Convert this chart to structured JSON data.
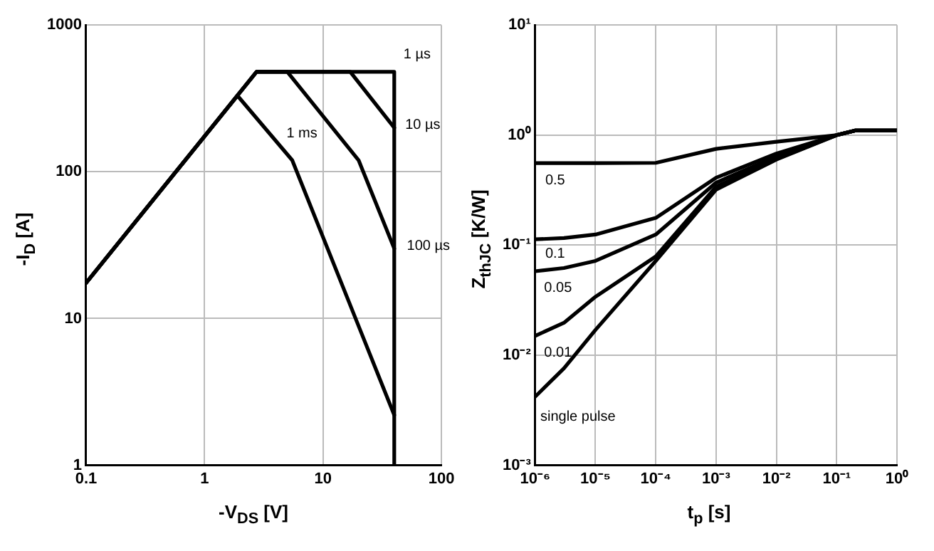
{
  "chart_data": [
    {
      "type": "line",
      "xlabel": "-V$_{DS}$ [V]",
      "ylabel": "-I$_{D}$ [A]",
      "log": "xy",
      "grid": true,
      "legend": false,
      "marker": "none",
      "line_style": "solid",
      "xlim": [
        0.1,
        100
      ],
      "ylim": [
        1,
        1000
      ],
      "xticks": [
        {
          "value": 0.1,
          "label": "0.1"
        },
        1,
        10,
        100
      ],
      "yticks": [
        1,
        10,
        100,
        1000
      ],
      "series": [
        {
          "name": "1 µs",
          "color": "#000000",
          "x": [
            0.1,
            2.75,
            40,
            40
          ],
          "values": [
            17.5,
            480,
            480,
            1
          ]
        },
        {
          "name": "10 µs",
          "color": "#000000",
          "x": [
            0.1,
            2.75,
            17,
            40
          ],
          "values": [
            17.5,
            480,
            480,
            200
          ]
        },
        {
          "name": "100 µs",
          "color": "#000000",
          "x": [
            0.1,
            2.75,
            5,
            20,
            40
          ],
          "values": [
            17.5,
            480,
            480,
            120,
            30
          ]
        },
        {
          "name": "1 ms",
          "color": "#000000",
          "x": [
            0.1,
            1.9,
            5.5,
            40
          ],
          "values": [
            17.5,
            330,
            120,
            2.2
          ]
        }
      ]
    },
    {
      "type": "line",
      "xlabel": "t$_{p}$ [s]",
      "ylabel": "Z$_{thJC}$ [K/W]",
      "log": "xy",
      "grid": true,
      "legend": false,
      "marker": "none",
      "line_style": "solid",
      "xlim": [
        1e-06,
        1
      ],
      "ylim": [
        0.001,
        10
      ],
      "xticks": [
        {
          "value": 1e-06,
          "label": "10⁻⁶"
        },
        {
          "value": 1e-05,
          "label": "10⁻⁵"
        },
        {
          "value": 0.0001,
          "label": "10⁻⁴"
        },
        {
          "value": 0.001,
          "label": "10⁻³"
        },
        {
          "value": 0.01,
          "label": "10⁻²"
        },
        {
          "value": 0.1,
          "label": "10⁻¹"
        },
        {
          "value": 1,
          "label": "10⁰"
        }
      ],
      "yticks": [
        {
          "value": 0.001,
          "label": "10⁻³"
        },
        {
          "value": 0.01,
          "label": "10⁻²"
        },
        {
          "value": 0.1,
          "label": "10⁻¹"
        },
        {
          "value": 1,
          "label": "10⁰"
        },
        {
          "value": 10,
          "label": "10¹"
        }
      ],
      "x": [
        1e-06,
        3e-06,
        1e-05,
        0.0001,
        0.001,
        0.01,
        0.1,
        0.2,
        1
      ],
      "series": [
        {
          "name": "0.5",
          "color": "#000000",
          "values": [
            0.556,
            0.556,
            0.556,
            0.56,
            0.75,
            0.87,
            1.0,
            1.1,
            1.1
          ]
        },
        {
          "name": "0.1",
          "color": "#000000",
          "values": [
            0.113,
            0.116,
            0.125,
            0.177,
            0.41,
            0.68,
            1.0,
            1.1,
            1.1
          ]
        },
        {
          "name": "0.05",
          "color": "#000000",
          "values": [
            0.058,
            0.062,
            0.072,
            0.125,
            0.37,
            0.64,
            1.0,
            1.1,
            1.1
          ]
        },
        {
          "name": "0.01",
          "color": "#000000",
          "values": [
            0.015,
            0.0197,
            0.034,
            0.079,
            0.34,
            0.61,
            1.0,
            1.1,
            1.1
          ]
        },
        {
          "name": "single pulse",
          "color": "#000000",
          "values": [
            0.0042,
            0.0076,
            0.017,
            0.072,
            0.32,
            0.6,
            1.0,
            1.1,
            1.1
          ]
        }
      ]
    }
  ]
}
